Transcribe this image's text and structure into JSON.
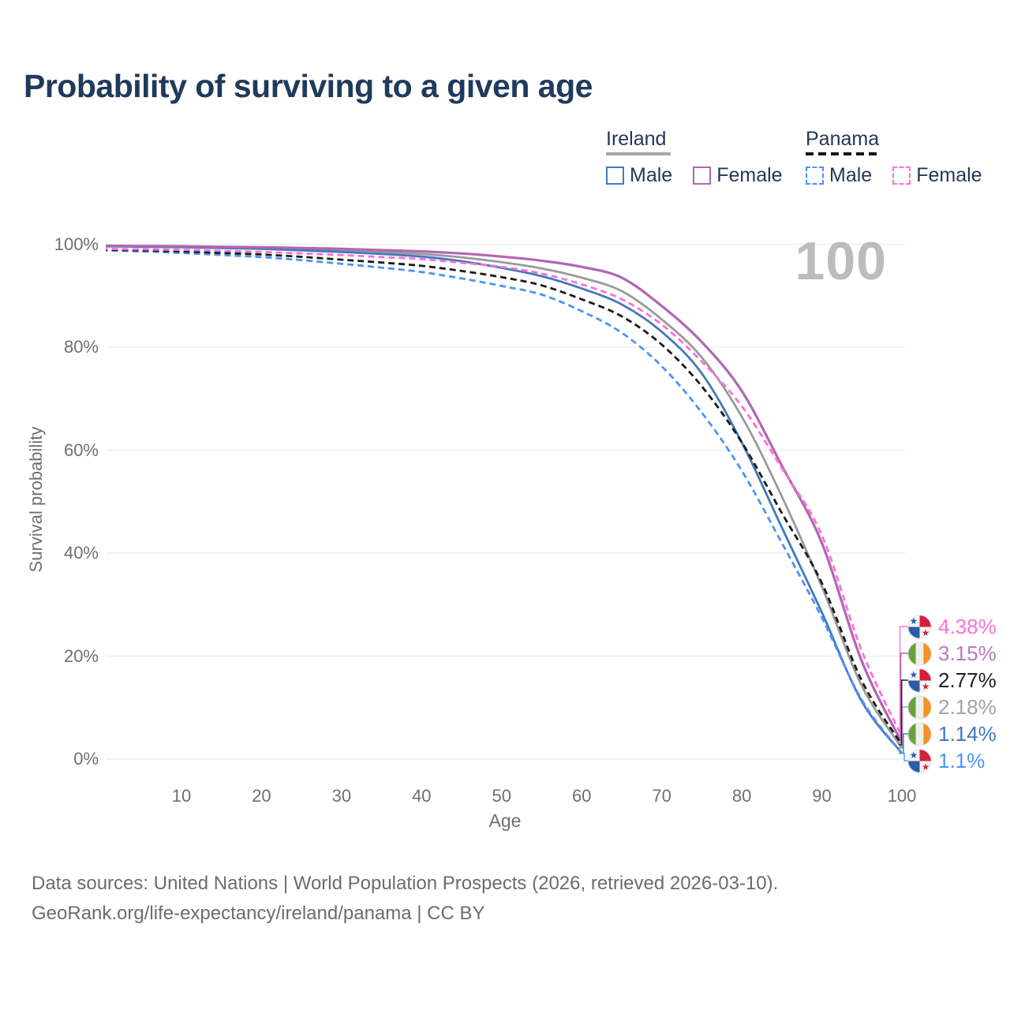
{
  "page": {
    "title": "Probability of surviving to a given age",
    "watermark_age": "100"
  },
  "legend": {
    "groups": [
      {
        "country": "Ireland",
        "line_style": "solid",
        "underline_color": "#a8a8a8",
        "items": [
          {
            "label": "Male",
            "series": "ireland-male",
            "color": "#4379bd",
            "dashed": false
          },
          {
            "label": "Female",
            "series": "ireland-female",
            "color": "#b266b2",
            "dashed": false
          }
        ]
      },
      {
        "country": "Panama",
        "line_style": "dashed",
        "underline_color": "#161616",
        "items": [
          {
            "label": "Male",
            "series": "panama-male",
            "color": "#4d94f5",
            "dashed": true
          },
          {
            "label": "Female",
            "series": "panama-female",
            "color": "#ff70d4",
            "dashed": true
          }
        ]
      }
    ]
  },
  "axes": {
    "x": {
      "label": "Age",
      "ticks": [
        10,
        20,
        30,
        40,
        50,
        60,
        70,
        80,
        90,
        100
      ],
      "min": 0,
      "max": 100
    },
    "y": {
      "label": "Survival probability",
      "ticks": [
        {
          "value": 100,
          "label": "100%"
        },
        {
          "value": 80,
          "label": "80%"
        },
        {
          "value": 60,
          "label": "60%"
        },
        {
          "value": 40,
          "label": "40%"
        },
        {
          "value": 20,
          "label": "20%"
        },
        {
          "value": 0,
          "label": "0%"
        }
      ]
    }
  },
  "chart_data": {
    "type": "line",
    "title": "Probability of surviving to a given age",
    "xlabel": "Age",
    "ylabel": "Survival probability",
    "xlim": [
      0,
      100
    ],
    "ylim": [
      0,
      100
    ],
    "grid": "horizontal",
    "x_ages": [
      0,
      5,
      10,
      15,
      20,
      25,
      30,
      35,
      40,
      45,
      50,
      55,
      60,
      65,
      70,
      75,
      80,
      85,
      90,
      95,
      100
    ],
    "series": [
      {
        "key": "ireland-average",
        "name": "Ireland (average)",
        "country": "Ireland",
        "sex": "Both",
        "color": "#9a9a9a",
        "dashed": false,
        "width": 2.8,
        "values": [
          99.65,
          99.58,
          99.5,
          99.38,
          99.25,
          99.03,
          98.8,
          98.48,
          98.1,
          97.45,
          96.5,
          95.3,
          93.5,
          90.9,
          85.4,
          78.0,
          66.5,
          51.0,
          33.5,
          14.2,
          2.18
        ]
      },
      {
        "key": "ireland-male",
        "name": "Ireland Male",
        "country": "Ireland",
        "sex": "Male",
        "color": "#4379bd",
        "dashed": false,
        "width": 2.8,
        "values": [
          99.6,
          99.5,
          99.4,
          99.25,
          99.1,
          98.8,
          98.5,
          98.1,
          97.6,
          96.7,
          95.4,
          93.8,
          91.4,
          88.3,
          83.0,
          74.9,
          61.5,
          45.0,
          28.5,
          11.2,
          1.14
        ]
      },
      {
        "key": "ireland-female",
        "name": "Ireland Female",
        "country": "Ireland",
        "sex": "Female",
        "color": "#b266b2",
        "dashed": false,
        "width": 3.2,
        "values": [
          99.7,
          99.65,
          99.6,
          99.5,
          99.4,
          99.25,
          99.1,
          98.85,
          98.6,
          98.2,
          97.6,
          96.8,
          95.6,
          93.5,
          88.0,
          81.0,
          71.5,
          57.0,
          42.0,
          19.0,
          3.15
        ]
      },
      {
        "key": "panama-male",
        "name": "Panama Male",
        "country": "Panama",
        "sex": "Male",
        "color": "#4d94f5",
        "dashed": true,
        "width": 2.8,
        "values": [
          98.8,
          98.6,
          98.3,
          97.9,
          97.5,
          96.9,
          96.2,
          95.45,
          94.6,
          93.35,
          91.9,
          90.2,
          87.0,
          82.8,
          76.3,
          67.3,
          56.0,
          42.0,
          27.5,
          11.5,
          1.1
        ]
      },
      {
        "key": "panama-average",
        "name": "Panama (average)",
        "country": "Panama",
        "sex": "Both",
        "color": "#1a1a1a",
        "dashed": true,
        "width": 2.8,
        "values": [
          98.95,
          98.8,
          98.6,
          98.3,
          98.0,
          97.55,
          97.0,
          96.45,
          95.8,
          94.8,
          93.6,
          92.0,
          89.3,
          86.0,
          80.5,
          72.4,
          61.5,
          47.8,
          34.2,
          15.2,
          2.77
        ]
      },
      {
        "key": "panama-female",
        "name": "Panama Female",
        "country": "Panama",
        "sex": "Female",
        "color": "#ff70d4",
        "dashed": true,
        "width": 2.8,
        "values": [
          99.1,
          99.0,
          98.9,
          98.7,
          98.5,
          98.2,
          97.9,
          97.5,
          97.1,
          96.4,
          95.6,
          94.3,
          92.2,
          89.3,
          84.4,
          77.2,
          68.5,
          56.5,
          43.5,
          21.0,
          4.38
        ]
      }
    ]
  },
  "end_labels": [
    {
      "series": "panama-female",
      "flag": "panama",
      "text": "4.38%",
      "color": "#ff70d4",
      "value_pct": 4.38
    },
    {
      "series": "ireland-female",
      "flag": "ireland",
      "text": "3.15%",
      "color": "#b879bd",
      "value_pct": 3.15
    },
    {
      "series": "panama-average",
      "flag": "panama",
      "text": "2.77%",
      "color": "#1f1f1f",
      "value_pct": 2.77
    },
    {
      "series": "ireland-average",
      "flag": "ireland",
      "text": "2.18%",
      "color": "#a2a2a2",
      "value_pct": 2.18
    },
    {
      "series": "ireland-male",
      "flag": "ireland",
      "text": "1.14%",
      "color": "#4379bd",
      "value_pct": 1.14
    },
    {
      "series": "panama-male",
      "flag": "panama",
      "text": "1.1%",
      "color": "#4d94f5",
      "value_pct": 1.1
    }
  ],
  "flag_colors": {
    "ireland": {
      "green": "#69a042",
      "white": "#efefec",
      "orange": "#f39324"
    },
    "panama": {
      "blue": "#2a5ca8",
      "red": "#d41f3d",
      "white": "#f4f4f2"
    }
  },
  "footer": {
    "line1": "Data sources: United Nations | World Population Prospects (2026, retrieved 2026-03-10).",
    "line2": "GeoRank.org/life-expectancy/ireland/panama | CC BY"
  }
}
